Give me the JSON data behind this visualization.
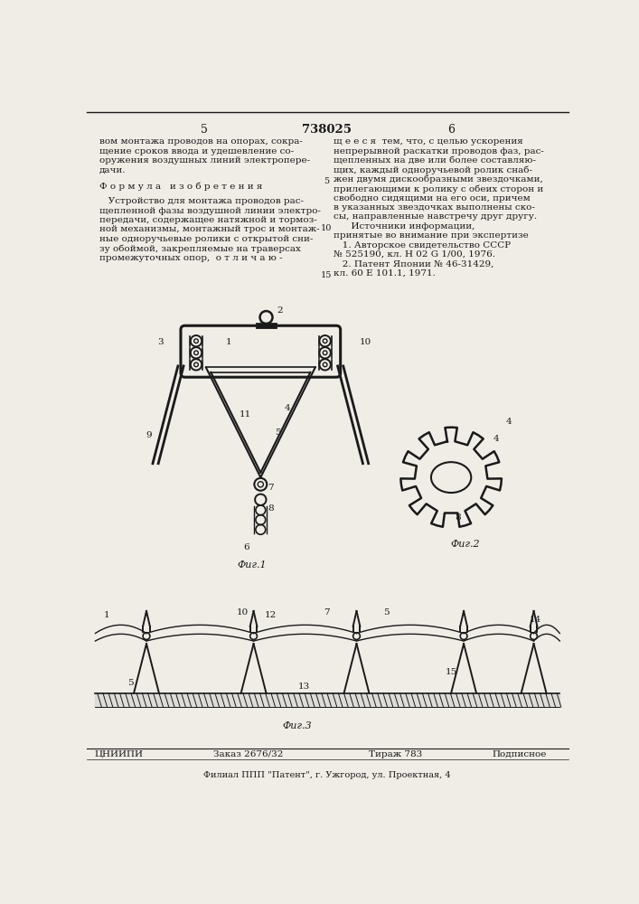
{
  "page_number_left": "5",
  "patent_number": "738025",
  "page_number_right": "6",
  "left_column_text": [
    "вом монтажа проводов на опорах, сокра-",
    "щение сроков ввода и удешевление со-",
    "оружения воздушных линий электропере-",
    "дачи."
  ],
  "formula_title": "Ф о р м у л а   и з о б р е т е н и я",
  "formula_text": [
    "   Устройство для монтажа проводов рас-",
    "щепленной фазы воздушной линии электро-",
    "передачи, содержащее натяжной и тормоз-",
    "ной механизмы, монтажный трос и монтаж-",
    "ные одноручьевые ролики с открытой сни-",
    "зу обоймой, закрепляемые на траверсах",
    "промежуточных опор,  о т л и ч а ю -"
  ],
  "right_column_text": [
    "щ е е с я  тем, что, с целью ускорения",
    "непрерывной раскатки проводов фаз, рас-",
    "щепленных на две или более составляю-",
    "щих, каждый одноручьевой ролик снаб-",
    "жен двумя дискообразными звездочками,",
    "прилегающими к ролику с обеих сторон и",
    "свободно сидящими на его оси, причем",
    "в указанных звездочках выполнены ско-",
    "сы, направленные навстречу друг другу.",
    "      Источники информации,",
    "принятые во внимание при экспертизе",
    "   1. Авторское свидетельство СССР",
    "№ 525190, кл. Н 02 G 1/00, 1976.",
    "   2. Патент Японии № 46-31429,",
    "кл. 60 Е 101.1, 1971."
  ],
  "line_numbers": [
    [
      "5",
      170
    ],
    [
      "10",
      270
    ],
    [
      "15",
      370
    ]
  ],
  "fig1_label": "Фиг.1",
  "fig2_label": "Фиг.2",
  "fig3_label": "Фиг.3",
  "bottom_text_left": "ЦНИИПИ",
  "bottom_text_center": "Заказ 2676/32",
  "bottom_text_tirazh": "Тираж 783",
  "bottom_text_right": "Подписное",
  "bottom_text2": "Филиал ППП \"Патент\", г. Ужгород, ул. Проектная, 4",
  "bg_color": "#f0ede6",
  "text_color": "#1a1a1a",
  "line_color": "#1a1a1a"
}
